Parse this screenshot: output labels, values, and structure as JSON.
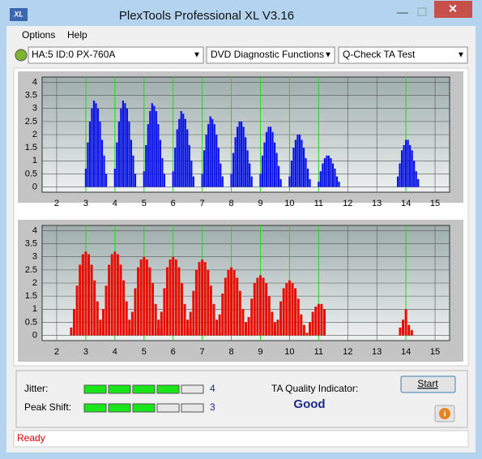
{
  "window": {
    "app_icon": "XL",
    "title": "PlexTools Professional XL V3.16"
  },
  "menu": [
    "Options",
    "Help"
  ],
  "toolbar": {
    "drive": "HA:5 ID:0  PX-760A",
    "function": "DVD Diagnostic Functions",
    "test": "Q-Check TA Test"
  },
  "chart_data": [
    {
      "type": "bar",
      "color": "#0a14e6",
      "xlim": [
        1.5,
        15.5
      ],
      "ylim": [
        -0.2,
        4.2
      ],
      "xticks": [
        2,
        3,
        4,
        5,
        6,
        7,
        8,
        9,
        10,
        11,
        12,
        13,
        14,
        15
      ],
      "yticks": [
        0,
        0.5,
        1,
        1.5,
        2,
        2.5,
        3,
        3.5,
        4
      ],
      "grid": true,
      "reference_lines": [
        3,
        4,
        5,
        6,
        7,
        8,
        9,
        10,
        11,
        14
      ],
      "x": [
        3,
        3.07,
        3.14,
        3.21,
        3.28,
        3.35,
        3.42,
        3.49,
        3.56,
        3.63,
        3.7,
        4,
        4.07,
        4.14,
        4.21,
        4.28,
        4.35,
        4.42,
        4.49,
        4.56,
        4.63,
        4.7,
        5,
        5.07,
        5.14,
        5.21,
        5.28,
        5.35,
        5.42,
        5.49,
        5.56,
        5.63,
        5.7,
        6,
        6.07,
        6.14,
        6.21,
        6.28,
        6.35,
        6.42,
        6.49,
        6.56,
        6.63,
        6.7,
        7,
        7.07,
        7.14,
        7.21,
        7.28,
        7.35,
        7.42,
        7.49,
        7.56,
        7.63,
        7.7,
        8,
        8.07,
        8.14,
        8.21,
        8.28,
        8.35,
        8.42,
        8.49,
        8.56,
        8.63,
        8.7,
        9,
        9.07,
        9.14,
        9.21,
        9.28,
        9.35,
        9.42,
        9.49,
        9.56,
        9.63,
        9.7,
        10,
        10.07,
        10.14,
        10.21,
        10.28,
        10.35,
        10.42,
        10.49,
        10.56,
        10.63,
        10.7,
        11,
        11.07,
        11.14,
        11.21,
        11.28,
        11.35,
        11.42,
        11.49,
        11.56,
        11.63,
        11.7,
        13.72,
        13.79,
        13.86,
        13.93,
        14,
        14.07,
        14.14,
        14.21,
        14.28,
        14.35,
        14.42
      ],
      "values": [
        0.7,
        1.7,
        2.5,
        3.0,
        3.3,
        3.2,
        3.0,
        2.5,
        1.8,
        1.2,
        0.5,
        0.7,
        1.7,
        2.5,
        3.0,
        3.3,
        3.2,
        3.0,
        2.5,
        1.8,
        1.2,
        0.5,
        0.6,
        1.6,
        2.4,
        2.9,
        3.2,
        3.1,
        2.9,
        2.4,
        1.8,
        1.1,
        0.5,
        0.6,
        1.5,
        2.2,
        2.6,
        2.9,
        2.8,
        2.6,
        2.2,
        1.6,
        1.0,
        0.4,
        0.5,
        1.4,
        2.0,
        2.4,
        2.7,
        2.6,
        2.4,
        2.0,
        1.5,
        0.9,
        0.4,
        0.5,
        1.3,
        1.9,
        2.3,
        2.5,
        2.5,
        2.3,
        1.9,
        1.4,
        0.9,
        0.4,
        0.5,
        1.2,
        1.7,
        2.1,
        2.3,
        2.3,
        2.1,
        1.7,
        1.3,
        0.8,
        0.3,
        0.4,
        1.0,
        1.5,
        1.8,
        2.0,
        2.0,
        1.8,
        1.5,
        1.1,
        0.7,
        0.3,
        0.2,
        0.6,
        0.9,
        1.1,
        1.2,
        1.2,
        1.1,
        0.9,
        0.7,
        0.4,
        0.2,
        0.4,
        0.9,
        1.4,
        1.6,
        1.8,
        1.8,
        1.6,
        1.4,
        1.0,
        0.6,
        0.3
      ]
    },
    {
      "type": "bar",
      "color": "#e60e00",
      "xlim": [
        1.5,
        15.5
      ],
      "ylim": [
        -0.2,
        4.2
      ],
      "xticks": [
        2,
        3,
        4,
        5,
        6,
        7,
        8,
        9,
        10,
        11,
        12,
        13,
        14,
        15
      ],
      "yticks": [
        0,
        0.5,
        1,
        1.5,
        2,
        2.5,
        3,
        3.5,
        4
      ],
      "grid": true,
      "reference_lines": [
        3,
        4,
        5,
        6,
        7,
        8,
        9,
        10,
        11,
        14
      ],
      "x": [
        2.5,
        2.6,
        2.7,
        2.8,
        2.9,
        3,
        3.1,
        3.2,
        3.3,
        3.4,
        3.5,
        3.6,
        3.5,
        3.6,
        3.7,
        3.8,
        3.9,
        4,
        4.1,
        4.2,
        4.3,
        4.4,
        4.5,
        4.6,
        4.5,
        4.6,
        4.7,
        4.8,
        4.9,
        5,
        5.1,
        5.2,
        5.3,
        5.4,
        5.5,
        5.6,
        5.5,
        5.6,
        5.7,
        5.8,
        5.9,
        6,
        6.1,
        6.2,
        6.3,
        6.4,
        6.5,
        6.6,
        6.5,
        6.6,
        6.7,
        6.8,
        6.9,
        7,
        7.1,
        7.2,
        7.3,
        7.4,
        7.5,
        7.6,
        7.5,
        7.6,
        7.7,
        7.8,
        7.9,
        8,
        8.1,
        8.2,
        8.3,
        8.4,
        8.5,
        8.6,
        8.5,
        8.6,
        8.7,
        8.8,
        8.9,
        9,
        9.1,
        9.2,
        9.3,
        9.4,
        9.5,
        9.6,
        9.5,
        9.6,
        9.7,
        9.8,
        9.9,
        10,
        10.1,
        10.2,
        10.3,
        10.4,
        10.5,
        10.6,
        10.7,
        10.8,
        10.9,
        11,
        11.1,
        11.2,
        13.8,
        13.9,
        14,
        14.1,
        14.2
      ],
      "values": [
        0.3,
        1.0,
        1.9,
        2.7,
        3.1,
        3.2,
        3.1,
        2.7,
        2.1,
        1.3,
        0.6,
        0.2,
        0.3,
        1.0,
        1.9,
        2.7,
        3.1,
        3.2,
        3.1,
        2.7,
        2.1,
        1.3,
        0.6,
        0.2,
        0.3,
        0.9,
        1.8,
        2.6,
        2.9,
        3.0,
        2.9,
        2.6,
        2.0,
        1.2,
        0.6,
        0.2,
        0.3,
        0.9,
        1.8,
        2.6,
        2.9,
        3.0,
        2.9,
        2.6,
        2.0,
        1.2,
        0.6,
        0.2,
        0.3,
        0.9,
        1.7,
        2.5,
        2.8,
        2.9,
        2.8,
        2.5,
        1.9,
        1.2,
        0.6,
        0.1,
        0.3,
        0.8,
        1.6,
        2.2,
        2.5,
        2.6,
        2.5,
        2.2,
        1.7,
        1.0,
        0.5,
        0.1,
        0.2,
        0.7,
        1.4,
        2.0,
        2.2,
        2.3,
        2.2,
        2.0,
        1.5,
        0.9,
        0.5,
        0.1,
        0.2,
        0.6,
        1.3,
        1.8,
        2.0,
        2.1,
        2.0,
        1.8,
        1.4,
        0.8,
        0.4,
        0.1,
        0.5,
        0.9,
        1.1,
        1.2,
        1.2,
        1.0,
        0.3,
        0.6,
        1.0,
        0.4,
        0.2
      ]
    }
  ],
  "results": {
    "jitter_label": "Jitter:",
    "jitter": 4,
    "peak_shift_label": "Peak Shift:",
    "peak_shift": 3,
    "quality_label": "TA Quality Indicator:",
    "quality": "Good"
  },
  "buttons": {
    "start": "Start"
  },
  "status": "Ready"
}
